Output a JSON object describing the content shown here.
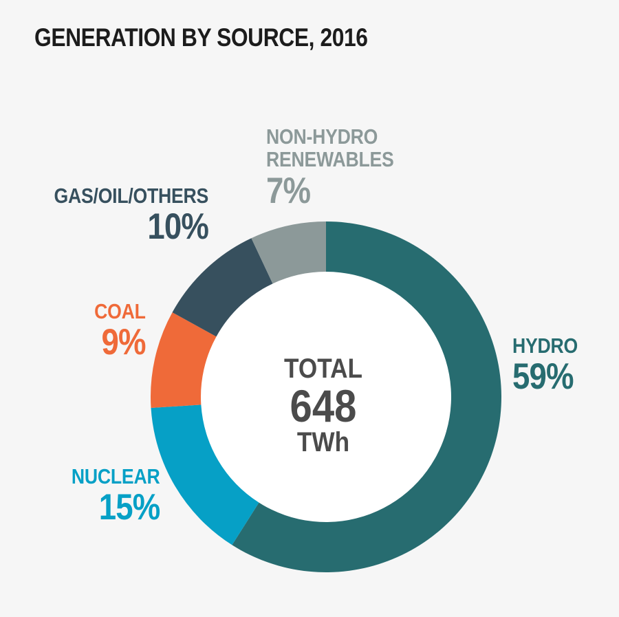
{
  "chart_data": {
    "type": "pie",
    "title": "GENERATION BY SOURCE, 2016",
    "center": {
      "line1": "TOTAL",
      "value": "648",
      "unit": "TWh"
    },
    "slices": [
      {
        "name": "HYDRO",
        "value": 59,
        "label": "59%",
        "color": "#276c70"
      },
      {
        "name": "NUCLEAR",
        "value": 15,
        "label": "15%",
        "color": "#06a0c6"
      },
      {
        "name": "COAL",
        "value": 9,
        "label": "9%",
        "color": "#ef6a39"
      },
      {
        "name": "GAS/OIL/OTHERS",
        "value": 10,
        "label": "10%",
        "color": "#37505e"
      },
      {
        "name": "NON-HYDRO RENEWABLES",
        "name_lines": [
          "NON-HYDRO",
          "RENEWABLES"
        ],
        "value": 7,
        "label": "7%",
        "color": "#8c9999"
      }
    ]
  }
}
